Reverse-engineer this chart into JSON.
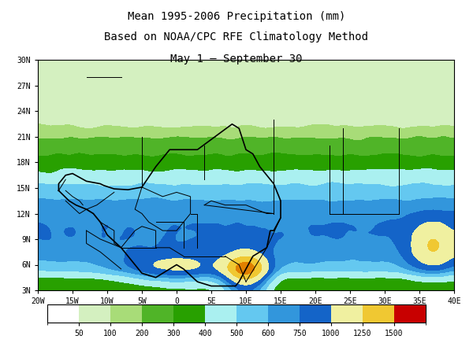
{
  "title_line1": "Mean 1995-2006 Precipitation (mm)",
  "title_line2": "Based on NOAA/CPC RFE Climatology Method",
  "title_line3": "May 1 – September 30",
  "lon_min": -20,
  "lon_max": 40,
  "lat_min": 3,
  "lat_max": 30,
  "colorbar_levels": [
    0,
    50,
    100,
    200,
    300,
    400,
    500,
    600,
    750,
    1000,
    1250,
    1500,
    1800
  ],
  "colorbar_colors": [
    "#ffffff",
    "#d4f0c0",
    "#a8dc78",
    "#50b428",
    "#28a000",
    "#aaf0f0",
    "#64c8f0",
    "#3296dc",
    "#1464c8",
    "#f0f0a0",
    "#f0c832",
    "#e08000",
    "#c80000"
  ],
  "colorbar_ticks": [
    50,
    100,
    200,
    300,
    400,
    500,
    600,
    750,
    1000,
    1250,
    1500
  ],
  "background_color": "#ffffff",
  "title_fontsize": 10,
  "font_family": "monospace"
}
